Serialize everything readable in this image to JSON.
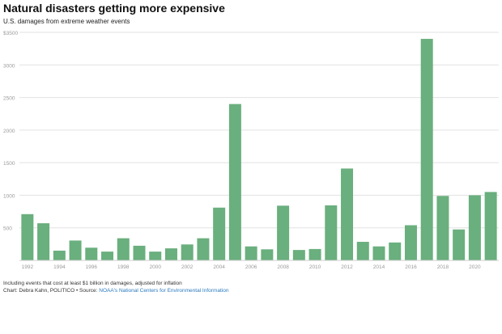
{
  "header": {
    "title": "Natural disasters getting more expensive",
    "subtitle": "U.S. damages from extreme weather events"
  },
  "footer": {
    "note": "Including events that cost at least $1 billion in damages, adjusted for inflation",
    "credit": "Chart: Debra Kahn, POLITICO • Source: ",
    "source_link": "NOAA's National Centers for Environmental Information"
  },
  "colors": {
    "bar": "#6aaf7e",
    "grid": "#e2e2e2",
    "tick_text": "#9a9a9a"
  },
  "chart_data": {
    "type": "bar",
    "title": "Natural disasters getting more expensive",
    "subtitle": "U.S. damages from extreme weather events",
    "xlabel": "",
    "ylabel": "",
    "ylim": [
      0,
      3500
    ],
    "y_ticks": [
      500,
      1000,
      1500,
      2000,
      2500,
      3000,
      3500
    ],
    "y_tick_labels": [
      "500",
      "1000",
      "1500",
      "2000",
      "2500",
      "3000",
      "$3500"
    ],
    "x_tick_labels": [
      "1992",
      "1994",
      "1996",
      "1998",
      "2000",
      "2002",
      "2004",
      "2006",
      "2008",
      "2010",
      "2012",
      "2014",
      "2016",
      "2018",
      "2020"
    ],
    "grid": true,
    "categories": [
      "1992",
      "1993",
      "1994",
      "1995",
      "1996",
      "1997",
      "1998",
      "1999",
      "2000",
      "2001",
      "2002",
      "2003",
      "2004",
      "2005",
      "2006",
      "2007",
      "2008",
      "2009",
      "2010",
      "2011",
      "2012",
      "2013",
      "2014",
      "2015",
      "2016",
      "2017",
      "2018",
      "2019",
      "2020",
      "2021"
    ],
    "values": [
      710,
      570,
      150,
      305,
      195,
      135,
      340,
      225,
      135,
      185,
      245,
      340,
      810,
      2400,
      215,
      170,
      840,
      160,
      175,
      845,
      1410,
      285,
      215,
      275,
      540,
      3400,
      990,
      475,
      1000,
      1050
    ]
  }
}
